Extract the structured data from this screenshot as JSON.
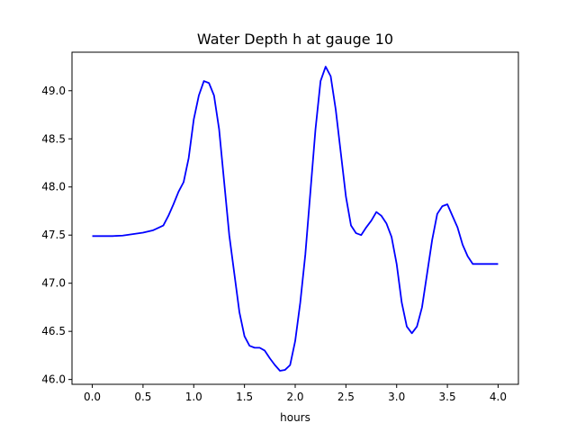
{
  "chart_data": {
    "type": "line",
    "title": "Water Depth h at gauge 10",
    "xlabel": "hours",
    "ylabel": "",
    "xlim": [
      -0.2,
      4.2
    ],
    "ylim": [
      45.95,
      49.4
    ],
    "xticks": [
      0.0,
      0.5,
      1.0,
      1.5,
      2.0,
      2.5,
      3.0,
      3.5,
      4.0
    ],
    "xtick_labels": [
      "0.0",
      "0.5",
      "1.0",
      "1.5",
      "2.0",
      "2.5",
      "3.0",
      "3.5",
      "4.0"
    ],
    "yticks": [
      46.0,
      46.5,
      47.0,
      47.5,
      48.0,
      48.5,
      49.0
    ],
    "ytick_labels": [
      "46.0",
      "46.5",
      "47.0",
      "47.5",
      "48.0",
      "48.5",
      "49.0"
    ],
    "grid": false,
    "legend": "none",
    "series": [
      {
        "color": "#0000ff",
        "x": [
          0.0,
          0.1,
          0.2,
          0.3,
          0.4,
          0.5,
          0.6,
          0.7,
          0.75,
          0.8,
          0.85,
          0.9,
          0.95,
          1.0,
          1.05,
          1.1,
          1.15,
          1.2,
          1.25,
          1.3,
          1.35,
          1.4,
          1.45,
          1.5,
          1.55,
          1.6,
          1.65,
          1.7,
          1.75,
          1.8,
          1.85,
          1.9,
          1.95,
          2.0,
          2.05,
          2.1,
          2.15,
          2.2,
          2.25,
          2.3,
          2.35,
          2.4,
          2.45,
          2.5,
          2.55,
          2.6,
          2.65,
          2.7,
          2.75,
          2.8,
          2.85,
          2.9,
          2.95,
          3.0,
          3.05,
          3.1,
          3.15,
          3.2,
          3.25,
          3.3,
          3.35,
          3.4,
          3.45,
          3.5,
          3.55,
          3.6,
          3.65,
          3.7,
          3.75,
          3.8,
          3.85,
          3.9,
          3.95,
          4.0
        ],
        "y": [
          47.49,
          47.49,
          47.49,
          47.495,
          47.51,
          47.525,
          47.55,
          47.6,
          47.7,
          47.82,
          47.95,
          48.05,
          48.3,
          48.7,
          48.95,
          49.1,
          49.08,
          48.95,
          48.6,
          48.05,
          47.5,
          47.1,
          46.7,
          46.45,
          46.35,
          46.33,
          46.33,
          46.3,
          46.22,
          46.15,
          46.09,
          46.1,
          46.15,
          46.4,
          46.8,
          47.3,
          47.95,
          48.6,
          49.1,
          49.25,
          49.15,
          48.8,
          48.35,
          47.9,
          47.6,
          47.52,
          47.5,
          47.58,
          47.65,
          47.74,
          47.7,
          47.62,
          47.48,
          47.2,
          46.8,
          46.55,
          46.48,
          46.55,
          46.75,
          47.1,
          47.45,
          47.72,
          47.8,
          47.82,
          47.7,
          47.58,
          47.4,
          47.28,
          47.2,
          47.2,
          47.2,
          47.2,
          47.2,
          47.2
        ]
      }
    ]
  }
}
